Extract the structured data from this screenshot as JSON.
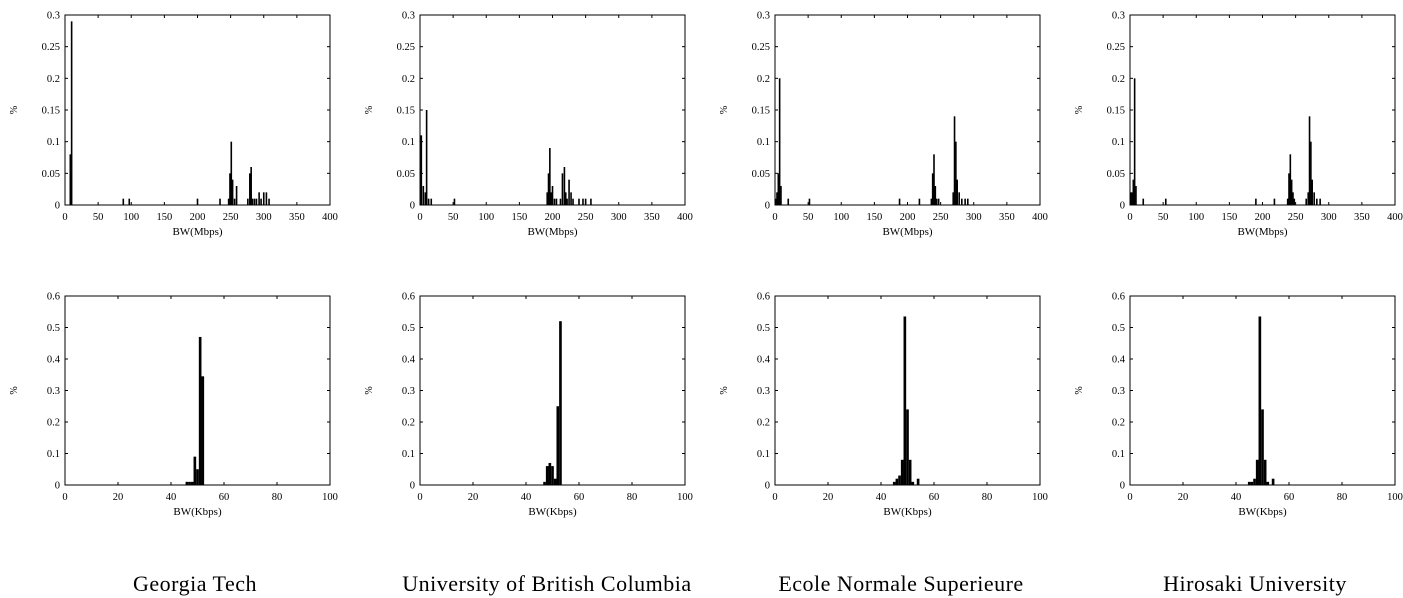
{
  "captions": [
    "Georgia Tech",
    "University of British Columbia",
    "Ecole Normale Superieure",
    "Hirosaki University"
  ],
  "chart_data": [
    {
      "type": "bar",
      "site": "Georgia Tech",
      "row": "top",
      "xlabel": "BW(Mbps)",
      "ylabel": "%",
      "xlim": [
        0,
        400
      ],
      "ylim": [
        0,
        0.3
      ],
      "xticks": [
        0,
        50,
        100,
        150,
        200,
        250,
        300,
        350,
        400
      ],
      "yticks": [
        0,
        0.05,
        0.1,
        0.15,
        0.2,
        0.25,
        0.3
      ],
      "x": [
        8,
        10,
        88,
        97,
        200,
        234,
        247,
        249,
        251,
        253,
        256,
        259,
        276,
        279,
        281,
        283,
        286,
        289,
        293,
        296,
        300,
        304,
        308
      ],
      "values": [
        0.08,
        0.29,
        0.01,
        0.01,
        0.01,
        0.01,
        0.01,
        0.05,
        0.1,
        0.04,
        0.01,
        0.03,
        0.01,
        0.05,
        0.06,
        0.01,
        0.01,
        0.01,
        0.02,
        0.01,
        0.02,
        0.02,
        0.01
      ]
    },
    {
      "type": "bar",
      "site": "University of British Columbia",
      "row": "top",
      "xlabel": "BW(Mbps)",
      "ylabel": "%",
      "xlim": [
        0,
        400
      ],
      "ylim": [
        0,
        0.3
      ],
      "xticks": [
        0,
        50,
        100,
        150,
        200,
        250,
        300,
        350,
        400
      ],
      "yticks": [
        0,
        0.05,
        0.1,
        0.15,
        0.2,
        0.25,
        0.3
      ],
      "x": [
        2,
        5,
        8,
        10,
        13,
        17,
        52,
        192,
        194,
        196,
        198,
        200,
        203,
        206,
        212,
        215,
        218,
        220,
        222,
        225,
        228,
        231,
        240,
        246,
        250,
        258
      ],
      "values": [
        0.11,
        0.03,
        0.02,
        0.15,
        0.01,
        0.01,
        0.01,
        0.02,
        0.05,
        0.09,
        0.02,
        0.03,
        0.01,
        0.01,
        0.01,
        0.05,
        0.06,
        0.02,
        0.01,
        0.04,
        0.02,
        0.01,
        0.01,
        0.01,
        0.01,
        0.01
      ]
    },
    {
      "type": "bar",
      "site": "Ecole Normale Superieure",
      "row": "top",
      "xlabel": "BW(Mbps)",
      "ylabel": "%",
      "xlim": [
        0,
        400
      ],
      "ylim": [
        0,
        0.3
      ],
      "xticks": [
        0,
        50,
        100,
        150,
        200,
        250,
        300,
        350,
        400
      ],
      "yticks": [
        0,
        0.05,
        0.1,
        0.15,
        0.2,
        0.25,
        0.3
      ],
      "x": [
        1,
        3,
        5,
        7,
        9,
        20,
        52,
        188,
        218,
        236,
        238,
        240,
        242,
        244,
        247,
        269,
        271,
        273,
        275,
        278,
        282,
        287,
        291
      ],
      "values": [
        0.01,
        0.02,
        0.05,
        0.2,
        0.03,
        0.01,
        0.01,
        0.01,
        0.01,
        0.01,
        0.05,
        0.08,
        0.03,
        0.01,
        0.01,
        0.02,
        0.14,
        0.1,
        0.04,
        0.02,
        0.01,
        0.01,
        0.01
      ]
    },
    {
      "type": "bar",
      "site": "Hirosaki University",
      "row": "top",
      "xlabel": "BW(Mbps)",
      "ylabel": "%",
      "xlim": [
        0,
        400
      ],
      "ylim": [
        0,
        0.3
      ],
      "xticks": [
        0,
        50,
        100,
        150,
        200,
        250,
        300,
        350,
        400
      ],
      "yticks": [
        0,
        0.05,
        0.1,
        0.15,
        0.2,
        0.25,
        0.3
      ],
      "x": [
        1,
        3,
        5,
        7,
        9,
        20,
        54,
        190,
        218,
        238,
        240,
        242,
        244,
        246,
        248,
        266,
        269,
        271,
        273,
        275,
        278,
        282,
        287
      ],
      "values": [
        0.02,
        0.02,
        0.04,
        0.2,
        0.03,
        0.01,
        0.01,
        0.01,
        0.01,
        0.01,
        0.05,
        0.08,
        0.04,
        0.02,
        0.01,
        0.01,
        0.02,
        0.14,
        0.1,
        0.04,
        0.02,
        0.01,
        0.01
      ]
    },
    {
      "type": "bar",
      "site": "Georgia Tech",
      "row": "bottom",
      "xlabel": "BW(Kbps)",
      "ylabel": "%",
      "xlim": [
        0,
        100
      ],
      "ylim": [
        0,
        0.6
      ],
      "xticks": [
        0,
        20,
        40,
        60,
        80,
        100
      ],
      "yticks": [
        0,
        0.1,
        0.2,
        0.3,
        0.4,
        0.5,
        0.6
      ],
      "x": [
        46,
        47,
        48,
        49,
        50,
        51,
        52
      ],
      "values": [
        0.01,
        0.01,
        0.01,
        0.09,
        0.05,
        0.47,
        0.345
      ]
    },
    {
      "type": "bar",
      "site": "University of British Columbia",
      "row": "bottom",
      "xlabel": "BW(Kbps)",
      "ylabel": "%",
      "xlim": [
        0,
        100
      ],
      "ylim": [
        0,
        0.6
      ],
      "xticks": [
        0,
        20,
        40,
        60,
        80,
        100
      ],
      "yticks": [
        0,
        0.1,
        0.2,
        0.3,
        0.4,
        0.5,
        0.6
      ],
      "x": [
        47,
        48,
        49,
        50,
        51,
        52,
        53
      ],
      "values": [
        0.01,
        0.06,
        0.07,
        0.06,
        0.02,
        0.25,
        0.52
      ]
    },
    {
      "type": "bar",
      "site": "Ecole Normale Superieure",
      "row": "bottom",
      "xlabel": "BW(Kbps)",
      "ylabel": "%",
      "xlim": [
        0,
        100
      ],
      "ylim": [
        0,
        0.6
      ],
      "xticks": [
        0,
        20,
        40,
        60,
        80,
        100
      ],
      "yticks": [
        0,
        0.1,
        0.2,
        0.3,
        0.4,
        0.5,
        0.6
      ],
      "x": [
        45,
        46,
        47,
        48,
        49,
        50,
        51,
        52,
        54
      ],
      "values": [
        0.01,
        0.02,
        0.03,
        0.08,
        0.535,
        0.24,
        0.08,
        0.01,
        0.02
      ]
    },
    {
      "type": "bar",
      "site": "Hirosaki University",
      "row": "bottom",
      "xlabel": "BW(Kbps)",
      "ylabel": "%",
      "xlim": [
        0,
        100
      ],
      "ylim": [
        0,
        0.6
      ],
      "xticks": [
        0,
        20,
        40,
        60,
        80,
        100
      ],
      "yticks": [
        0,
        0.1,
        0.2,
        0.3,
        0.4,
        0.5,
        0.6
      ],
      "x": [
        45,
        46,
        47,
        48,
        49,
        50,
        51,
        52,
        54
      ],
      "values": [
        0.01,
        0.01,
        0.02,
        0.08,
        0.535,
        0.24,
        0.08,
        0.01,
        0.02
      ]
    }
  ]
}
